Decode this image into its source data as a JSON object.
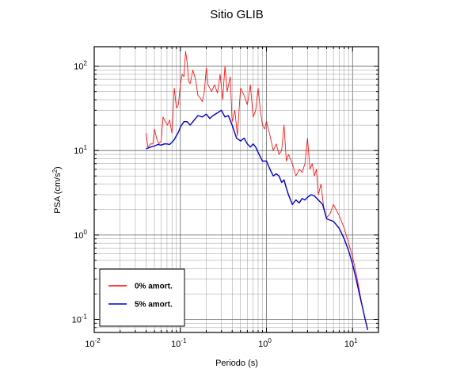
{
  "chart_data": {
    "type": "line",
    "title": "Sitio GLIB",
    "xlabel": "Periodo (s)",
    "ylabel_base": "PSA (cm/s",
    "ylabel_sup": "2",
    "ylabel_end": ")",
    "x_scale": "log",
    "y_scale": "log",
    "xlim": [
      0.01,
      20
    ],
    "ylim": [
      0.07,
      170
    ],
    "grid": true,
    "x_ticks": [
      {
        "base": "10",
        "exp": "-2"
      },
      {
        "base": "10",
        "exp": "-1"
      },
      {
        "base": "10",
        "exp": "0"
      },
      {
        "base": "10",
        "exp": "1"
      }
    ],
    "y_ticks": [
      {
        "base": "10",
        "exp": "-1"
      },
      {
        "base": "10",
        "exp": "0"
      },
      {
        "base": "10",
        "exp": "1"
      },
      {
        "base": "10",
        "exp": "2"
      }
    ],
    "legend_position": "bottom-left",
    "series": [
      {
        "name": "0% amort.",
        "color": "#ff0000",
        "points": [
          [
            0.04,
            16
          ],
          [
            0.042,
            11
          ],
          [
            0.045,
            12
          ],
          [
            0.048,
            12
          ],
          [
            0.05,
            18
          ],
          [
            0.053,
            14
          ],
          [
            0.056,
            12
          ],
          [
            0.06,
            13
          ],
          [
            0.063,
            25
          ],
          [
            0.067,
            22
          ],
          [
            0.071,
            20
          ],
          [
            0.075,
            23
          ],
          [
            0.08,
            16
          ],
          [
            0.085,
            55
          ],
          [
            0.09,
            32
          ],
          [
            0.095,
            35
          ],
          [
            0.1,
            60
          ],
          [
            0.105,
            80
          ],
          [
            0.11,
            75
          ],
          [
            0.115,
            150
          ],
          [
            0.12,
            110
          ],
          [
            0.125,
            65
          ],
          [
            0.13,
            62
          ],
          [
            0.14,
            90
          ],
          [
            0.15,
            70
          ],
          [
            0.16,
            45
          ],
          [
            0.17,
            42
          ],
          [
            0.18,
            38
          ],
          [
            0.19,
            50
          ],
          [
            0.2,
            95
          ],
          [
            0.21,
            60
          ],
          [
            0.22,
            55
          ],
          [
            0.23,
            50
          ],
          [
            0.24,
            55
          ],
          [
            0.25,
            60
          ],
          [
            0.27,
            48
          ],
          [
            0.29,
            80
          ],
          [
            0.31,
            40
          ],
          [
            0.33,
            100
          ],
          [
            0.35,
            50
          ],
          [
            0.38,
            75
          ],
          [
            0.4,
            22
          ],
          [
            0.43,
            30
          ],
          [
            0.46,
            15
          ],
          [
            0.5,
            55
          ],
          [
            0.55,
            45
          ],
          [
            0.6,
            35
          ],
          [
            0.65,
            60
          ],
          [
            0.7,
            25
          ],
          [
            0.75,
            30
          ],
          [
            0.8,
            55
          ],
          [
            0.85,
            30
          ],
          [
            0.9,
            20
          ],
          [
            0.95,
            18
          ],
          [
            1.0,
            22
          ],
          [
            1.1,
            15
          ],
          [
            1.2,
            10
          ],
          [
            1.3,
            12
          ],
          [
            1.4,
            9
          ],
          [
            1.5,
            10
          ],
          [
            1.6,
            20
          ],
          [
            1.7,
            7.5
          ],
          [
            1.8,
            9
          ],
          [
            2.0,
            7
          ],
          [
            2.2,
            5
          ],
          [
            2.4,
            6
          ],
          [
            2.6,
            5.5
          ],
          [
            2.8,
            7
          ],
          [
            3.0,
            14
          ],
          [
            3.2,
            6
          ],
          [
            3.4,
            7
          ],
          [
            3.6,
            5
          ],
          [
            3.8,
            6
          ],
          [
            4.0,
            3
          ],
          [
            4.3,
            4
          ],
          [
            4.6,
            2.2
          ],
          [
            5.0,
            1.6
          ],
          [
            5.5,
            1.8
          ],
          [
            6.0,
            2.3
          ],
          [
            7.0,
            1.7
          ],
          [
            8.0,
            1.2
          ],
          [
            9.0,
            0.8
          ],
          [
            10,
            0.55
          ],
          [
            11,
            0.35
          ],
          [
            12,
            0.22
          ],
          [
            13,
            0.14
          ],
          [
            14,
            0.1
          ],
          [
            15,
            0.075
          ]
        ]
      },
      {
        "name": "5% amort.",
        "color": "#0000cc",
        "points": [
          [
            0.04,
            10.5
          ],
          [
            0.045,
            11
          ],
          [
            0.05,
            11.3
          ],
          [
            0.055,
            11.8
          ],
          [
            0.06,
            11.6
          ],
          [
            0.065,
            12
          ],
          [
            0.07,
            12
          ],
          [
            0.075,
            11.8
          ],
          [
            0.08,
            12.5
          ],
          [
            0.085,
            13.5
          ],
          [
            0.09,
            15
          ],
          [
            0.095,
            16.5
          ],
          [
            0.1,
            19
          ],
          [
            0.11,
            22
          ],
          [
            0.12,
            22
          ],
          [
            0.13,
            20
          ],
          [
            0.14,
            22
          ],
          [
            0.15,
            24
          ],
          [
            0.16,
            26
          ],
          [
            0.18,
            25
          ],
          [
            0.2,
            27
          ],
          [
            0.22,
            24
          ],
          [
            0.24,
            26
          ],
          [
            0.27,
            28
          ],
          [
            0.3,
            30
          ],
          [
            0.33,
            25
          ],
          [
            0.36,
            26
          ],
          [
            0.4,
            20
          ],
          [
            0.45,
            14
          ],
          [
            0.5,
            13
          ],
          [
            0.55,
            14
          ],
          [
            0.6,
            12
          ],
          [
            0.65,
            11
          ],
          [
            0.7,
            12
          ],
          [
            0.75,
            11
          ],
          [
            0.8,
            9.5
          ],
          [
            0.9,
            7.5
          ],
          [
            1.0,
            7.5
          ],
          [
            1.1,
            6
          ],
          [
            1.2,
            5
          ],
          [
            1.3,
            5.3
          ],
          [
            1.4,
            5
          ],
          [
            1.5,
            4.2
          ],
          [
            1.6,
            4.5
          ],
          [
            1.7,
            3.6
          ],
          [
            1.8,
            3
          ],
          [
            2.0,
            2.3
          ],
          [
            2.2,
            2.6
          ],
          [
            2.4,
            2.4
          ],
          [
            2.6,
            2.7
          ],
          [
            2.8,
            2.6
          ],
          [
            3.0,
            2.8
          ],
          [
            3.3,
            3
          ],
          [
            3.6,
            2.9
          ],
          [
            4.0,
            2.6
          ],
          [
            4.5,
            2.3
          ],
          [
            5.0,
            1.55
          ],
          [
            5.5,
            1.5
          ],
          [
            6.0,
            1.45
          ],
          [
            7.0,
            1.2
          ],
          [
            8.0,
            0.9
          ],
          [
            9.0,
            0.65
          ],
          [
            10,
            0.45
          ],
          [
            11,
            0.3
          ],
          [
            12,
            0.2
          ],
          [
            13,
            0.14
          ],
          [
            14,
            0.1
          ],
          [
            15,
            0.075
          ]
        ]
      }
    ]
  }
}
